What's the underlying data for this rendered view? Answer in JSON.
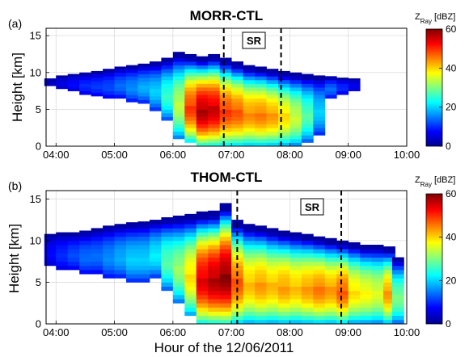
{
  "chart_data": [
    {
      "type": "heatmap",
      "panel_label": "(a)",
      "title": "MORR-CTL",
      "ylabel": "Height [km]",
      "xlabel": "",
      "x_ticks": [
        "04:00",
        "05:00",
        "06:00",
        "07:00",
        "08:00",
        "09:00",
        "10:00"
      ],
      "xlim": [
        3.83,
        10.0
      ],
      "y_ticks": [
        "0",
        "5",
        "10",
        "15"
      ],
      "ylim": [
        0,
        16
      ],
      "grid": true,
      "annotation": "SR",
      "sr_lines": [
        6.87,
        7.85
      ],
      "colorbar": {
        "label_main": "Z",
        "label_sub": "Ray",
        "unit": "[dBZ]",
        "ticks": [
          "0",
          "20",
          "40",
          "60"
        ],
        "range": [
          0,
          60
        ]
      },
      "columns": [
        {
          "x": 3.9,
          "bottom": 8.2,
          "top": 9.2,
          "peak": 4
        },
        {
          "x": 4.1,
          "bottom": 7.8,
          "top": 9.6,
          "peak": 6
        },
        {
          "x": 4.3,
          "bottom": 7.5,
          "top": 9.8,
          "peak": 8
        },
        {
          "x": 4.5,
          "bottom": 7.0,
          "top": 10.0,
          "peak": 10
        },
        {
          "x": 4.7,
          "bottom": 6.8,
          "top": 10.2,
          "peak": 11
        },
        {
          "x": 4.9,
          "bottom": 6.5,
          "top": 10.5,
          "peak": 12
        },
        {
          "x": 5.1,
          "bottom": 6.5,
          "top": 10.8,
          "peak": 14
        },
        {
          "x": 5.3,
          "bottom": 6.0,
          "top": 11.0,
          "peak": 16
        },
        {
          "x": 5.5,
          "bottom": 5.8,
          "top": 11.2,
          "peak": 18
        },
        {
          "x": 5.7,
          "bottom": 4.8,
          "top": 11.5,
          "peak": 20
        },
        {
          "x": 5.9,
          "bottom": 3.5,
          "top": 12.0,
          "peak": 26
        },
        {
          "x": 6.1,
          "bottom": 1.0,
          "top": 12.8,
          "peak": 34
        },
        {
          "x": 6.3,
          "bottom": 0.5,
          "top": 12.5,
          "peak": 50
        },
        {
          "x": 6.5,
          "bottom": 0.0,
          "top": 12.2,
          "peak": 58
        },
        {
          "x": 6.7,
          "bottom": 0.0,
          "top": 12.5,
          "peak": 56
        },
        {
          "x": 6.9,
          "bottom": 0.0,
          "top": 12.0,
          "peak": 50
        },
        {
          "x": 7.1,
          "bottom": 0.0,
          "top": 11.5,
          "peak": 48
        },
        {
          "x": 7.3,
          "bottom": 0.0,
          "top": 11.0,
          "peak": 45
        },
        {
          "x": 7.5,
          "bottom": 0.0,
          "top": 10.8,
          "peak": 46
        },
        {
          "x": 7.7,
          "bottom": 0.0,
          "top": 10.5,
          "peak": 44
        },
        {
          "x": 7.9,
          "bottom": 0.0,
          "top": 10.2,
          "peak": 40
        },
        {
          "x": 8.1,
          "bottom": 0.0,
          "top": 10.0,
          "peak": 35
        },
        {
          "x": 8.3,
          "bottom": 0.5,
          "top": 9.8,
          "peak": 28
        },
        {
          "x": 8.5,
          "bottom": 1.5,
          "top": 9.6,
          "peak": 20
        },
        {
          "x": 8.7,
          "bottom": 6.5,
          "top": 9.5,
          "peak": 14
        },
        {
          "x": 8.9,
          "bottom": 7.0,
          "top": 9.3,
          "peak": 10
        },
        {
          "x": 9.1,
          "bottom": 7.5,
          "top": 9.2,
          "peak": 7
        }
      ]
    },
    {
      "type": "heatmap",
      "panel_label": "(b)",
      "title": "THOM-CTL",
      "ylabel": "Height [km]",
      "xlabel": "Hour of the 12/06/2011",
      "x_ticks": [
        "04:00",
        "05:00",
        "06:00",
        "07:00",
        "08:00",
        "09:00",
        "10:00"
      ],
      "xlim": [
        3.83,
        10.0
      ],
      "y_ticks": [
        "0",
        "5",
        "10",
        "15"
      ],
      "ylim": [
        0,
        16
      ],
      "grid": true,
      "annotation": "SR",
      "sr_lines": [
        7.1,
        8.88
      ],
      "colorbar": {
        "label_main": "Z",
        "label_sub": "Ray",
        "unit": "[dBZ]",
        "ticks": [
          "0",
          "20",
          "40",
          "60"
        ],
        "range": [
          0,
          60
        ]
      },
      "columns": [
        {
          "x": 3.9,
          "bottom": 7.0,
          "top": 10.8,
          "peak": 8
        },
        {
          "x": 4.1,
          "bottom": 6.5,
          "top": 11.0,
          "peak": 10
        },
        {
          "x": 4.3,
          "bottom": 6.5,
          "top": 11.0,
          "peak": 12
        },
        {
          "x": 4.5,
          "bottom": 6.0,
          "top": 11.2,
          "peak": 14
        },
        {
          "x": 4.7,
          "bottom": 6.0,
          "top": 11.5,
          "peak": 14
        },
        {
          "x": 4.9,
          "bottom": 5.5,
          "top": 11.8,
          "peak": 16
        },
        {
          "x": 5.1,
          "bottom": 5.5,
          "top": 12.0,
          "peak": 18
        },
        {
          "x": 5.3,
          "bottom": 5.0,
          "top": 12.2,
          "peak": 20
        },
        {
          "x": 5.5,
          "bottom": 5.0,
          "top": 12.3,
          "peak": 20
        },
        {
          "x": 5.7,
          "bottom": 5.5,
          "top": 12.5,
          "peak": 22
        },
        {
          "x": 5.9,
          "bottom": 4.0,
          "top": 12.8,
          "peak": 28
        },
        {
          "x": 6.1,
          "bottom": 2.5,
          "top": 13.0,
          "peak": 32
        },
        {
          "x": 6.3,
          "bottom": 1.0,
          "top": 13.2,
          "peak": 40
        },
        {
          "x": 6.5,
          "bottom": 0.0,
          "top": 13.5,
          "peak": 55
        },
        {
          "x": 6.7,
          "bottom": 0.0,
          "top": 13.6,
          "peak": 58
        },
        {
          "x": 6.9,
          "bottom": 0.0,
          "top": 14.5,
          "peak": 60
        },
        {
          "x": 7.1,
          "bottom": 0.0,
          "top": 12.5,
          "peak": 48
        },
        {
          "x": 7.3,
          "bottom": 0.0,
          "top": 12.0,
          "peak": 42
        },
        {
          "x": 7.5,
          "bottom": 0.0,
          "top": 11.8,
          "peak": 44
        },
        {
          "x": 7.7,
          "bottom": 0.0,
          "top": 11.5,
          "peak": 42
        },
        {
          "x": 7.9,
          "bottom": 0.0,
          "top": 11.2,
          "peak": 44
        },
        {
          "x": 8.1,
          "bottom": 0.0,
          "top": 11.0,
          "peak": 42
        },
        {
          "x": 8.3,
          "bottom": 0.0,
          "top": 10.8,
          "peak": 44
        },
        {
          "x": 8.5,
          "bottom": 0.0,
          "top": 10.5,
          "peak": 46
        },
        {
          "x": 8.7,
          "bottom": 0.0,
          "top": 10.3,
          "peak": 44
        },
        {
          "x": 8.9,
          "bottom": 0.0,
          "top": 10.0,
          "peak": 48
        },
        {
          "x": 9.1,
          "bottom": 0.0,
          "top": 9.8,
          "peak": 40
        },
        {
          "x": 9.3,
          "bottom": 0.0,
          "top": 9.5,
          "peak": 38
        },
        {
          "x": 9.5,
          "bottom": 0.0,
          "top": 9.5,
          "peak": 36
        },
        {
          "x": 9.7,
          "bottom": 0.0,
          "top": 9.3,
          "peak": 44
        },
        {
          "x": 9.85,
          "bottom": 0.0,
          "top": 8.0,
          "peak": 30
        }
      ]
    }
  ]
}
